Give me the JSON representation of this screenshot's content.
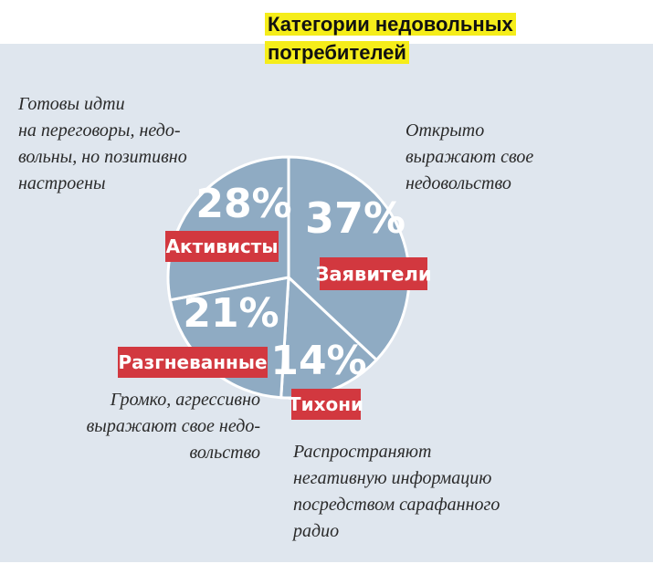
{
  "chart_data": {
    "type": "pie",
    "title": "Категории недовольных потребителей",
    "slices": [
      {
        "label": "Заявители",
        "value": 37,
        "value_label": "37%",
        "description": "Открыто выражают свое недовольство"
      },
      {
        "label": "Тихони",
        "value": 14,
        "value_label": "14%",
        "description": "Распространяют негативную информацию посредством сарафанного радио"
      },
      {
        "label": "Разгневанные",
        "value": 21,
        "value_label": "21%",
        "description": "Громко, агрессивно выражают свое недовольство"
      },
      {
        "label": "Активисты",
        "value": 28,
        "value_label": "28%",
        "description": "Готовы идти на переговоры, недовольны, но позитивно настроены"
      }
    ]
  },
  "descriptions": {
    "zayaviteli": [
      "Открыто",
      "выражают свое",
      "недовольство"
    ],
    "tikhoni": [
      "Распространяют",
      "негативную информацию",
      "посредством сарафанного",
      "радио"
    ],
    "razgnevannye": [
      "Громко, агрессивно",
      "выражают свое недо-",
      "вольство"
    ],
    "aktivisty": [
      "Готовы идти",
      "на переговоры, недо-",
      "вольны, но позитивно",
      "настроены"
    ]
  },
  "colors": {
    "slice": "#8fabc3",
    "slice_border": "#ffffff",
    "label_bg": "#d2383f",
    "title_highlight": "#f5ed1a",
    "panel_bg": "#dfe6ee"
  }
}
